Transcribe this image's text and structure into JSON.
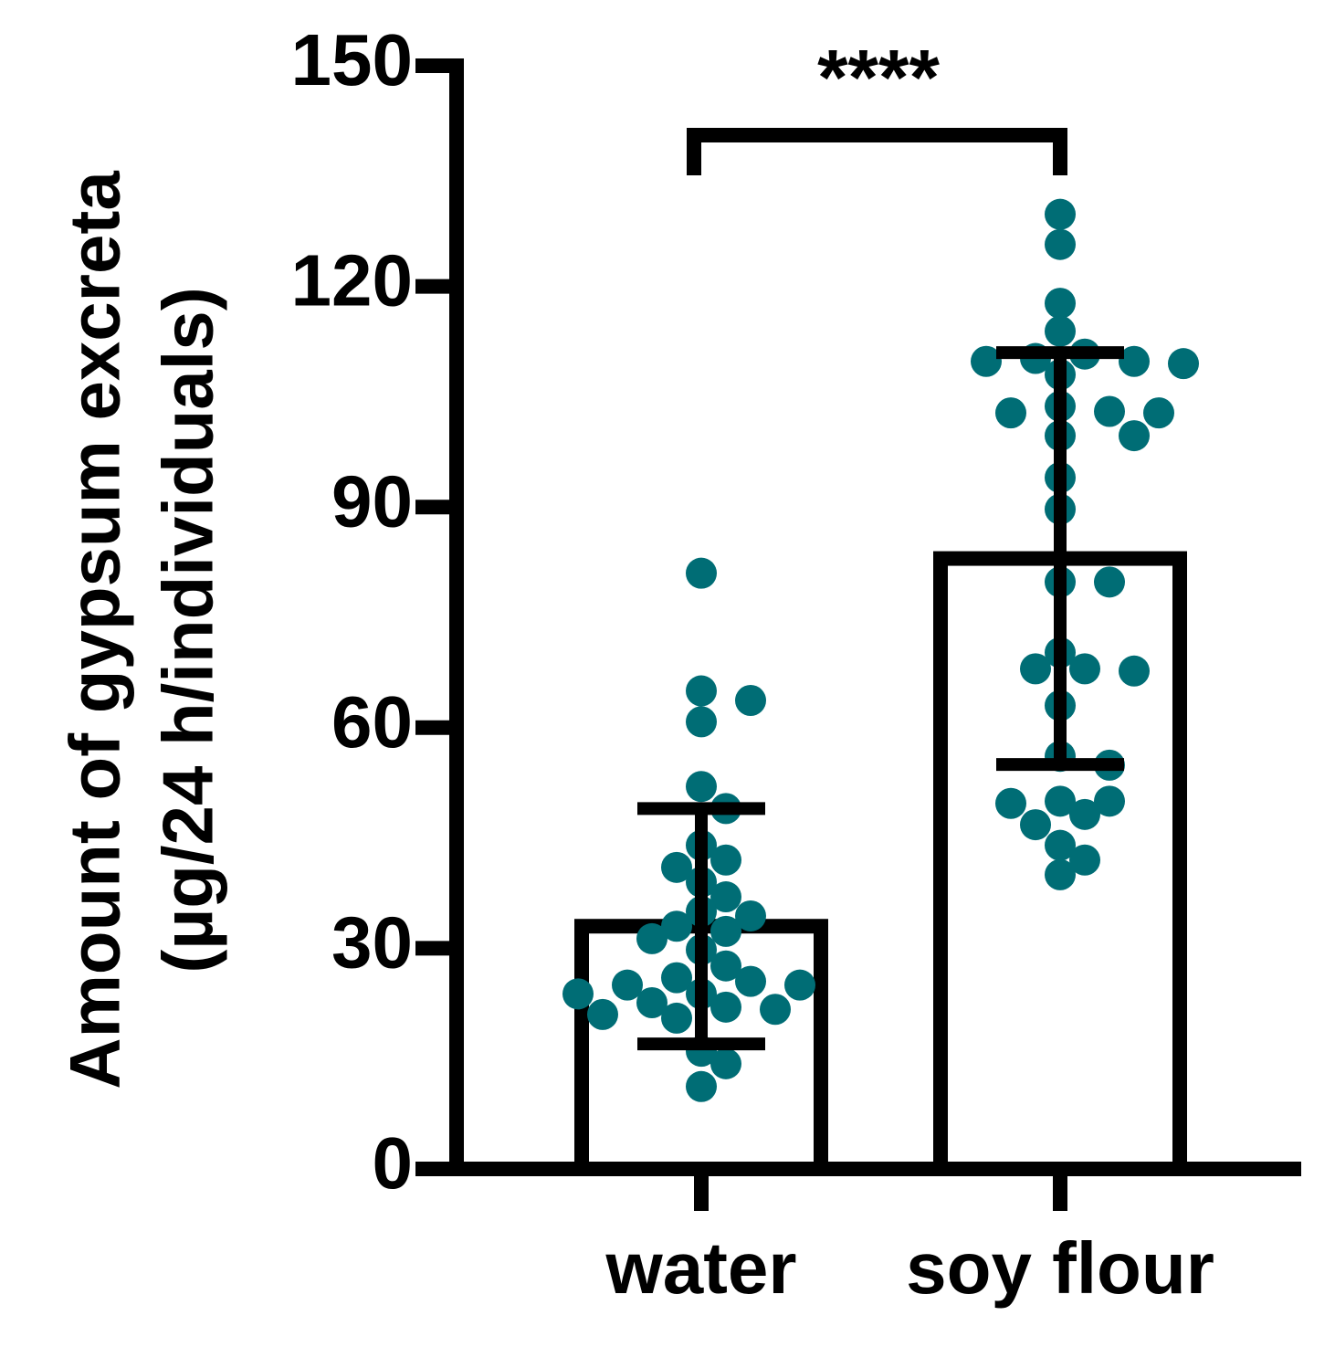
{
  "chart_data": {
    "type": "bar",
    "ylabel": [
      "Amount of gypsum excreta",
      "(µg/24 h/individuals)"
    ],
    "categories": [
      "water",
      "soy flour"
    ],
    "values": [
      33,
      83
    ],
    "errors": [
      16,
      28
    ],
    "points": [
      [
        81,
        65,
        63.7,
        60.8,
        52,
        49,
        44,
        42,
        41,
        39,
        37,
        35,
        34.4,
        33,
        32.3,
        31.3,
        29.8,
        27.6,
        26,
        25.5,
        25,
        25,
        23.8,
        23.8,
        22.6,
        22,
        21,
        20.5,
        21.7,
        16,
        14.3,
        11.2
      ],
      [
        129.8,
        125.7,
        117.7,
        113.9,
        110.8,
        110.2,
        109.5,
        109.8,
        109.8,
        108,
        103.7,
        103,
        102.8,
        102.8,
        99.7,
        99.7,
        94,
        89.7,
        79.8,
        79.8,
        70.2,
        68,
        67.7,
        68,
        63,
        54.9,
        56.1,
        50,
        50,
        49.7,
        48.2,
        46.8,
        44,
        42,
        40
      ]
    ],
    "bar_color": "#ffffff",
    "point_color": "#006d75",
    "annotation": "****",
    "ylim": [
      0,
      150
    ],
    "yticks": [
      0,
      30,
      60,
      90,
      120,
      150
    ]
  }
}
